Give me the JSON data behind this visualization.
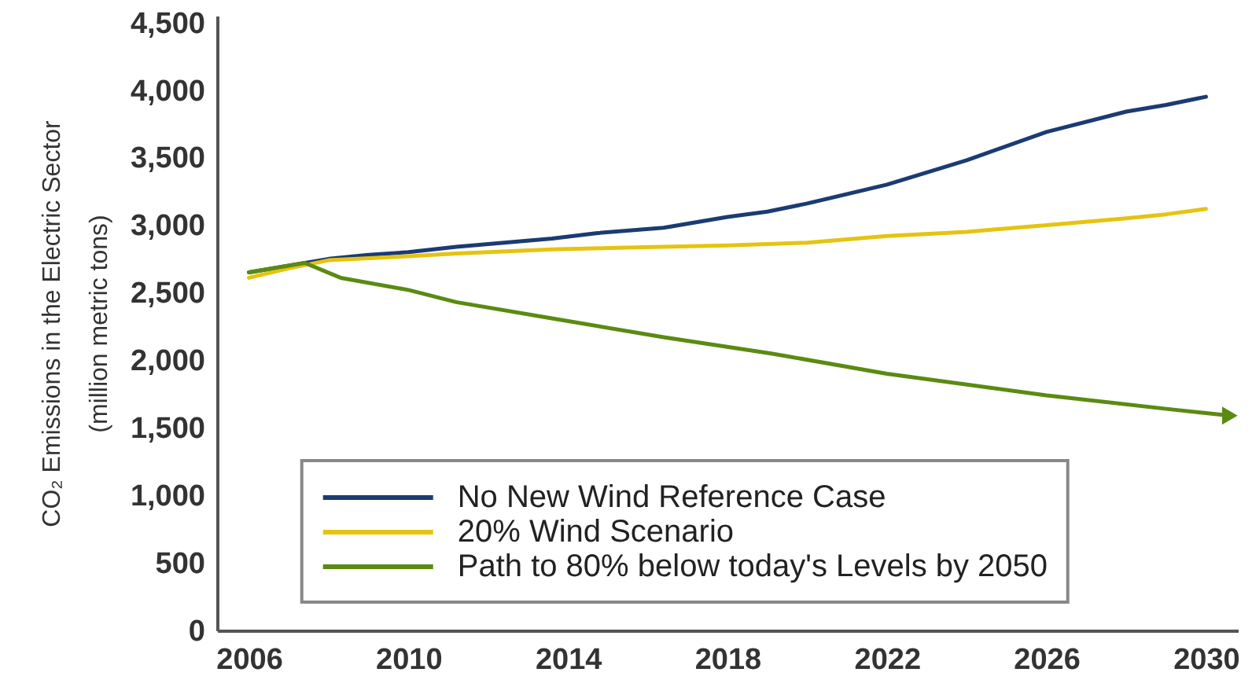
{
  "chart_data": {
    "type": "line",
    "ylabel": "CO₂ Emissions in the Electric Sector\n(million metric tons)",
    "xlim": [
      2005.2,
      2030.8
    ],
    "xticks": [
      2006,
      2010,
      2014,
      2018,
      2022,
      2026,
      2030
    ],
    "ylim": [
      0,
      4550
    ],
    "yticks": [
      0,
      500,
      {
        "value": 1000,
        "label": "1,000"
      },
      {
        "value": 1500,
        "label": "1,500"
      },
      {
        "value": 2000,
        "label": "2,000"
      },
      {
        "value": 2500,
        "label": "2,500"
      },
      {
        "value": 3000,
        "label": "3,000"
      },
      {
        "value": 3500,
        "label": "3,500"
      },
      {
        "value": 4000,
        "label": "4,000"
      },
      {
        "value": 4500,
        "label": "4,500"
      }
    ],
    "legend": "bottom",
    "series": [
      {
        "name": "No New Wind Reference Case",
        "color": "#1b3b72",
        "x": [
          2006,
          2007,
          2008,
          2009,
          2010,
          2011.2,
          2012,
          2013.6,
          2014.7,
          2016.4,
          2018,
          2019,
          2020,
          2022,
          2024,
          2026,
          2028,
          2029,
          2030
        ],
        "values": [
          2650,
          2700,
          2750,
          2780,
          2800,
          2840,
          2860,
          2900,
          2940,
          2980,
          3060,
          3100,
          3160,
          3300,
          3480,
          3690,
          3840,
          3890,
          3950
        ]
      },
      {
        "name": "20% Wind Scenario",
        "color": "#e5c410",
        "x": [
          2006,
          2007,
          2008,
          2010,
          2011.2,
          2013.6,
          2015,
          2018,
          2020,
          2022,
          2024,
          2026,
          2028,
          2029,
          2030
        ],
        "values": [
          2610,
          2680,
          2740,
          2770,
          2790,
          2820,
          2830,
          2850,
          2870,
          2920,
          2950,
          3000,
          3050,
          3080,
          3120
        ]
      },
      {
        "name": "Path to 80% below today's Levels by 2050",
        "color": "#5b8a12",
        "x": [
          2006,
          2007.4,
          2008.3,
          2010,
          2011.2,
          2013.8,
          2016.4,
          2019.1,
          2022,
          2026,
          2029,
          2030.6
        ],
        "values": [
          2650,
          2720,
          2610,
          2520,
          2430,
          2300,
          2170,
          2050,
          1900,
          1740,
          1640,
          1590
        ]
      }
    ]
  }
}
